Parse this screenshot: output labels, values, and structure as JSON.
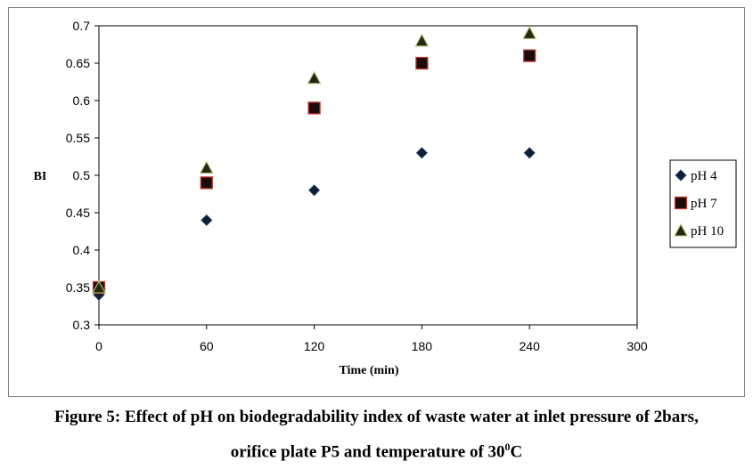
{
  "chart_data": {
    "type": "scatter",
    "title": "",
    "xlabel": "Time (min)",
    "ylabel": "BI",
    "xlim": [
      0,
      300
    ],
    "ylim": [
      0.3,
      0.7
    ],
    "xticks": [
      "0",
      "60",
      "120",
      "180",
      "240",
      "300"
    ],
    "yticks": [
      "0.3",
      "0.35",
      "0.4",
      "0.45",
      "0.5",
      "0.55",
      "0.6",
      "0.65",
      "0.7"
    ],
    "grid": false,
    "legend_position": "right",
    "series": [
      {
        "name": "pH 4",
        "marker": "diamond",
        "color": "#0f1f33",
        "points": [
          [
            0,
            0.34
          ],
          [
            60,
            0.44
          ],
          [
            120,
            0.48
          ],
          [
            180,
            0.53
          ],
          [
            240,
            0.53
          ]
        ]
      },
      {
        "name": "pH 7",
        "marker": "square",
        "color": "#1a0a0a",
        "edge": "#c0392b",
        "points": [
          [
            0,
            0.35
          ],
          [
            60,
            0.49
          ],
          [
            120,
            0.59
          ],
          [
            180,
            0.65
          ],
          [
            240,
            0.66
          ]
        ]
      },
      {
        "name": "pH 10",
        "marker": "triangle",
        "color": "#1f2a10",
        "edge": "#b5c27a",
        "points": [
          [
            0,
            0.35
          ],
          [
            60,
            0.51
          ],
          [
            120,
            0.63
          ],
          [
            180,
            0.68
          ],
          [
            240,
            0.69
          ]
        ]
      }
    ]
  },
  "caption": {
    "line1": "Figure 5: Effect of pH on biodegradability index of waste water at inlet pressure of 2bars,",
    "line2_prefix": "orifice plate P5 and temperature of 30",
    "line2_sup": "0",
    "line2_suffix": "C"
  }
}
